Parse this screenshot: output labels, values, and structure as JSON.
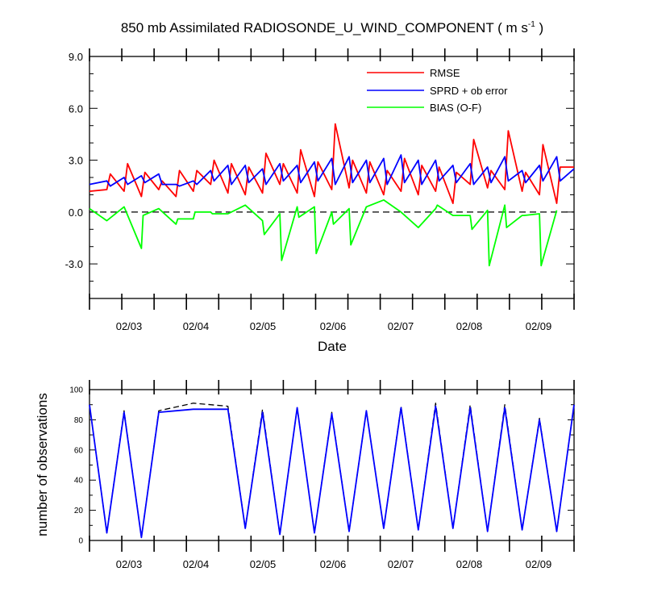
{
  "chart_data": [
    {
      "type": "line",
      "title": "850 mb Assimilated RADIOSONDE_U_WIND_COMPONENT ( m s",
      "title_sup": "-1",
      "title_end": " )",
      "xlabel": "Date",
      "ylabel": "",
      "xlim": [
        0,
        36
      ],
      "ylim": [
        -5,
        9
      ],
      "x_ticklabels": [
        "02/03",
        "02/04",
        "02/05",
        "02/06",
        "02/07",
        "02/08",
        "02/09"
      ],
      "x_tickpos": [
        3,
        7,
        11,
        15,
        19,
        23,
        27
      ],
      "x_ticklabels_pos": [
        2.5,
        6.5,
        10.5,
        14.5,
        18.5,
        22.5,
        26.5
      ],
      "y_ticks": [
        9,
        6,
        3,
        0,
        -3
      ],
      "y_ticklabels": [
        "9.0",
        "6.0",
        "3.0",
        "0.0",
        "-3.0"
      ],
      "zero_line": true,
      "legend_position": "top-right",
      "series": [
        {
          "name": "RMSE",
          "color": "#ff0000",
          "x": [
            0,
            1,
            1.2,
            2,
            2.2,
            3,
            3.2,
            4,
            4.2,
            5,
            5.2,
            6,
            6.2,
            7,
            7.2,
            8,
            8.2,
            9,
            9.2,
            10,
            10.2,
            11,
            11.2,
            12,
            12.2,
            13,
            13.2,
            14,
            14.2,
            15,
            15.2,
            16,
            16.2,
            17,
            17.2,
            18,
            18.2,
            19,
            19.2,
            20,
            20.2,
            21,
            21.2,
            22,
            22.2,
            23,
            23.2,
            24,
            24.2,
            25,
            25.2,
            26,
            26.2,
            27,
            27.2,
            28
          ],
          "y": [
            1.2,
            1.3,
            2.2,
            1.2,
            2.8,
            0.9,
            2.3,
            1.3,
            1.8,
            0.9,
            2.4,
            1.2,
            2.4,
            1.6,
            3.0,
            1.1,
            2.8,
            1.0,
            2.6,
            1.1,
            3.4,
            1.6,
            2.8,
            1.1,
            3.6,
            0.9,
            2.9,
            1.3,
            5.1,
            1.4,
            3.0,
            1.1,
            2.9,
            1.0,
            2.4,
            1.2,
            3.1,
            1.0,
            2.7,
            1.2,
            2.6,
            0.5,
            2.3,
            1.6,
            4.2,
            1.4,
            2.4,
            1.3,
            4.7,
            1.2,
            2.3,
            1.0,
            3.9,
            0.5,
            2.6,
            2.6
          ]
        },
        {
          "name": "SPRD + ob error",
          "color": "#0000ff",
          "x": [
            0,
            1,
            1.2,
            2,
            2.2,
            3,
            3.2,
            4,
            4.2,
            5,
            5.2,
            6,
            6.2,
            7,
            7.2,
            8,
            8.2,
            9,
            9.2,
            10,
            10.2,
            11,
            11.2,
            12,
            12.2,
            13,
            13.2,
            14,
            14.2,
            15,
            15.2,
            16,
            16.2,
            17,
            17.2,
            18,
            18.2,
            19,
            19.2,
            20,
            20.2,
            21,
            21.2,
            22,
            22.2,
            23,
            23.2,
            24,
            24.2,
            25,
            25.2,
            26,
            26.2,
            27,
            27.2,
            28
          ],
          "y": [
            1.6,
            1.8,
            1.5,
            2.0,
            1.6,
            2.1,
            1.7,
            2.2,
            1.6,
            1.6,
            1.5,
            1.8,
            1.6,
            2.4,
            1.8,
            2.7,
            1.6,
            2.7,
            1.7,
            2.5,
            1.6,
            2.8,
            1.8,
            2.7,
            1.7,
            2.9,
            1.8,
            3.1,
            1.6,
            3.2,
            1.7,
            3.0,
            1.7,
            3.1,
            1.6,
            3.3,
            1.7,
            3.0,
            1.6,
            3.0,
            1.8,
            2.7,
            1.7,
            2.8,
            1.6,
            2.6,
            1.7,
            3.2,
            1.8,
            2.4,
            1.7,
            2.7,
            1.8,
            3.2,
            1.8,
            2.5
          ]
        },
        {
          "name": "BIAS (O-F)",
          "color": "#00ff00",
          "x": [
            0,
            1,
            2,
            3,
            3.1,
            4,
            5,
            5.1,
            6,
            6.1,
            7,
            7.1,
            8,
            9,
            10,
            10.1,
            11,
            11.1,
            12,
            12.1,
            13,
            13.1,
            14,
            14.1,
            15,
            15.1,
            16,
            17,
            18,
            19,
            20,
            20.1,
            21,
            21.1,
            22,
            22.1,
            23,
            23.1,
            24,
            24.1,
            25,
            25.1,
            26,
            26.1,
            27
          ],
          "y": [
            0.2,
            -0.5,
            0.3,
            -2.1,
            -0.2,
            0.2,
            -0.7,
            -0.4,
            -0.4,
            0.0,
            0.0,
            -0.1,
            -0.1,
            0.4,
            -0.5,
            -1.3,
            -0.1,
            -2.8,
            0.3,
            -0.3,
            0.3,
            -2.4,
            0.0,
            -0.7,
            0.2,
            -1.9,
            0.3,
            0.7,
            0.0,
            -0.9,
            0.2,
            0.4,
            -0.2,
            -0.2,
            -0.2,
            -1.0,
            0.1,
            -3.1,
            0.4,
            -0.9,
            -0.2,
            -0.2,
            -0.1,
            -3.1,
            0.1
          ]
        }
      ]
    },
    {
      "type": "line",
      "title": "",
      "xlabel": "",
      "ylabel": "number of observations",
      "xlim": [
        0,
        28
      ],
      "ylim": [
        0,
        100
      ],
      "x_ticklabels": [
        "02/03",
        "02/04",
        "02/05",
        "02/06",
        "02/07",
        "02/08",
        "02/09"
      ],
      "x_ticklabels_pos": [
        2,
        6,
        10,
        14,
        18,
        22,
        26
      ],
      "y_ticks": [
        0,
        20,
        40,
        60,
        80,
        100
      ],
      "y_ticklabels": [
        "0",
        "20",
        "40",
        "60",
        "80",
        "100"
      ],
      "series": [
        {
          "name": "",
          "color": "#000000",
          "dashed": true,
          "x": [
            0,
            1,
            2,
            3,
            4,
            6,
            8,
            9,
            10,
            11,
            12,
            13,
            14,
            15,
            16,
            17,
            18,
            19,
            20,
            21,
            22,
            23,
            24,
            25,
            26,
            27,
            28
          ],
          "y": [
            90,
            5,
            86,
            2,
            86,
            91,
            89,
            8,
            87,
            4,
            88,
            5,
            85,
            6,
            86,
            8,
            89,
            7,
            91,
            8,
            90,
            6,
            90,
            7,
            81,
            6,
            90
          ]
        },
        {
          "name": "",
          "color": "#0000ff",
          "x": [
            0,
            1,
            2,
            3,
            4,
            6,
            8,
            9,
            10,
            11,
            12,
            13,
            14,
            15,
            16,
            17,
            18,
            19,
            20,
            21,
            22,
            23,
            24,
            25,
            26,
            27,
            28
          ],
          "y": [
            90,
            5,
            85,
            2,
            85,
            87,
            87,
            8,
            85,
            4,
            88,
            5,
            84,
            6,
            86,
            8,
            88,
            7,
            89,
            8,
            88,
            6,
            88,
            7,
            80,
            6,
            90
          ]
        }
      ]
    }
  ],
  "legend": {
    "rmse": "RMSE",
    "sprd": "SPRD + ob error",
    "bias": "BIAS (O-F)"
  }
}
